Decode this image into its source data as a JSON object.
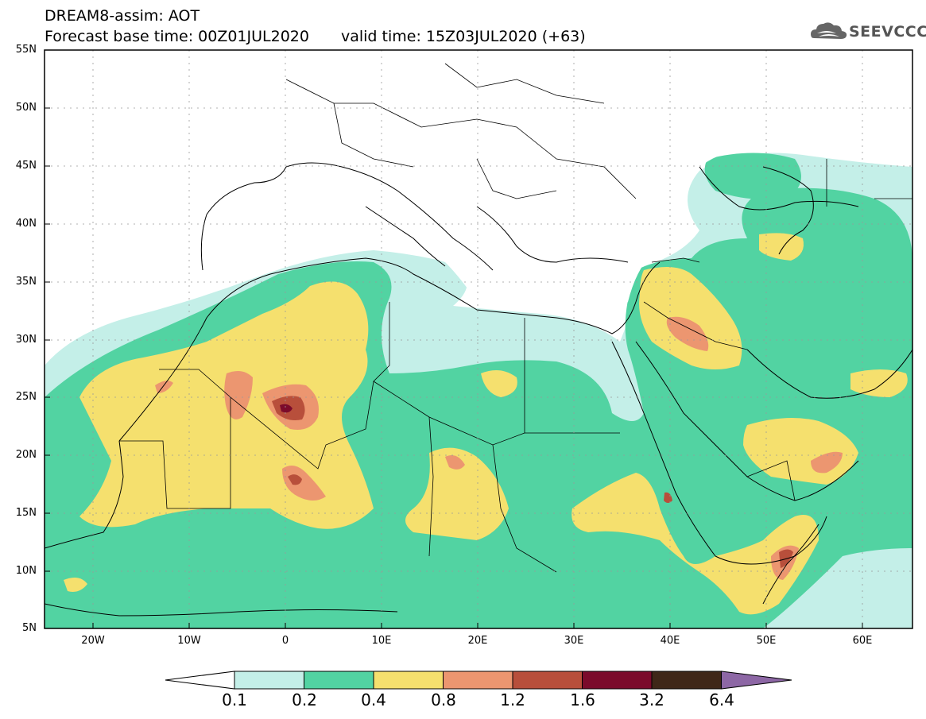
{
  "title": {
    "line1": "DREAM8-assim: AOT",
    "base_time": "Forecast base time: 00Z01JUL2020",
    "valid_time": "valid time: 15Z03JUL2020 (+63)"
  },
  "logo": {
    "icon": "cloud-icon",
    "text": "SEEVCCC"
  },
  "map": {
    "lat_labels": [
      "55N",
      "50N",
      "45N",
      "40N",
      "35N",
      "30N",
      "25N",
      "20N",
      "15N",
      "10N",
      "5N"
    ],
    "lon_labels": [
      "20W",
      "10W",
      "0",
      "10E",
      "20E",
      "30E",
      "40E",
      "50E",
      "60E"
    ],
    "extent": {
      "lon": [
        -25,
        65
      ],
      "lat": [
        5,
        55
      ]
    }
  },
  "colorbar": {
    "labels": [
      "0.1",
      "0.2",
      "0.4",
      "0.8",
      "1.2",
      "1.6",
      "3.2",
      "6.4"
    ],
    "colors": [
      "#ffffff",
      "#c4efe8",
      "#52d3a2",
      "#f5e06e",
      "#ec9670",
      "#b84f3b",
      "#7b0b2b",
      "#3f2718",
      "#8d67a5"
    ]
  },
  "levels": {
    "c1": "#c4efe8",
    "c2": "#52d3a2",
    "c3": "#f5e06e",
    "c4": "#ec9670",
    "c5": "#b84f3b",
    "c6": "#7b0b2b"
  }
}
